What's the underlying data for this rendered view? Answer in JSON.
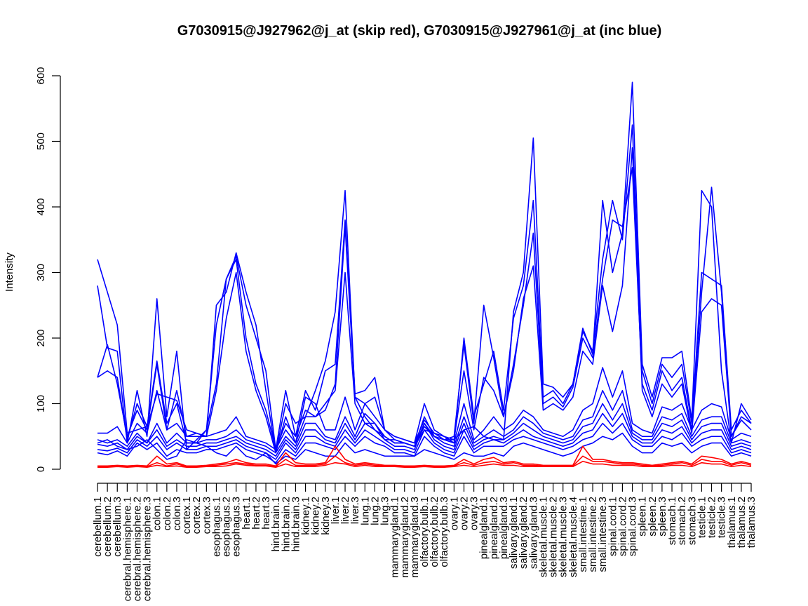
{
  "chart_data": {
    "type": "line",
    "title": "G7030915@J927962@j_at (skip red), G7030915@J927961@j_at (inc blue)",
    "xlabel": "",
    "ylabel": "Intensity",
    "ylim": [
      0,
      600
    ],
    "yticks": [
      0,
      100,
      200,
      300,
      400,
      500,
      600
    ],
    "grid": false,
    "categories": [
      "cerebellum.1",
      "cerebellum.2",
      "cerebellum.3",
      "cerebral.hemisphere.1",
      "cerebral.hemisphere.2",
      "cerebral.hemisphere.3",
      "colon.1",
      "colon.2",
      "colon.3",
      "cortex.1",
      "cortex.2",
      "cortex.3",
      "esophagus.1",
      "esophagus.2",
      "esophagus.3",
      "heart.1",
      "heart.2",
      "heart.3",
      "hind.brain.1",
      "hind.brain.2",
      "hind.brain.3",
      "kidney.1",
      "kidney.2",
      "kidney.3",
      "liver.1",
      "liver.2",
      "liver.3",
      "lung.1",
      "lung.2",
      "lung.3",
      "mammarygland.1",
      "mammarygland.2",
      "mammarygland.3",
      "olfactory.bulb.1",
      "olfactory.bulb.2",
      "olfactory.bulb.3",
      "ovary.1",
      "ovary.2",
      "ovary.3",
      "pinealgland.1",
      "pinealgland.2",
      "pinealgland.3",
      "salivary.gland.1",
      "salivary.gland.2",
      "salivary.gland.3",
      "skeletal.muscle.1",
      "skeletal.muscle.2",
      "skeletal.muscle.3",
      "skeletal.muscle.4",
      "small.intestine.1",
      "small.intestine.2",
      "small.intestine.3",
      "spinal.cord.1",
      "spinal.cord.2",
      "spinal.cord.3",
      "spleen.1",
      "spleen.2",
      "spleen.3",
      "stomach.1",
      "stomach.2",
      "stomach.3",
      "testicle.1",
      "testicle.2",
      "testicle.3",
      "thalamus.1",
      "thalamus.2",
      "thalamus.3"
    ],
    "series": [
      {
        "color": "#0000ff",
        "values": [
          320,
          270,
          220,
          55,
          60,
          65,
          115,
          110,
          105,
          60,
          55,
          50,
          250,
          270,
          330,
          270,
          220,
          120,
          25,
          100,
          70,
          80,
          120,
          165,
          240,
          425,
          110,
          100,
          80,
          60,
          45,
          40,
          35,
          60,
          55,
          50,
          45,
          60,
          65,
          50,
          45,
          45,
          240,
          300,
          505,
          130,
          125,
          110,
          130,
          215,
          175,
          410,
          300,
          360,
          590,
          160,
          110,
          170,
          170,
          180,
          75,
          425,
          400,
          150,
          40,
          100,
          75
        ],
        "series_color_name": "inc blue"
      },
      {
        "color": "#0000ff",
        "values": [
          280,
          185,
          180,
          40,
          120,
          50,
          260,
          80,
          180,
          30,
          45,
          60,
          130,
          290,
          325,
          250,
          200,
          150,
          30,
          120,
          50,
          120,
          90,
          150,
          160,
          380,
          115,
          120,
          140,
          60,
          50,
          45,
          40,
          75,
          55,
          45,
          40,
          200,
          80,
          130,
          180,
          90,
          230,
          280,
          410,
          110,
          120,
          100,
          130,
          210,
          180,
          320,
          410,
          350,
          525,
          150,
          100,
          160,
          140,
          160,
          70,
          300,
          290,
          280,
          60,
          90,
          70
        ]
      },
      {
        "color": "#0000ff",
        "values": [
          140,
          150,
          140,
          45,
          100,
          65,
          165,
          70,
          100,
          40,
          40,
          60,
          220,
          290,
          320,
          200,
          130,
          90,
          30,
          70,
          50,
          90,
          80,
          90,
          130,
          370,
          110,
          80,
          60,
          50,
          40,
          40,
          35,
          65,
          50,
          45,
          50,
          190,
          70,
          250,
          170,
          80,
          160,
          250,
          360,
          100,
          110,
          95,
          125,
          200,
          170,
          290,
          380,
          370,
          460,
          130,
          90,
          150,
          120,
          140,
          60,
          270,
          430,
          270,
          50,
          80,
          70
        ]
      },
      {
        "color": "#0000ff",
        "values": [
          140,
          190,
          130,
          50,
          90,
          60,
          160,
          60,
          120,
          50,
          50,
          50,
          120,
          230,
          300,
          180,
          120,
          80,
          25,
          80,
          40,
          80,
          80,
          100,
          120,
          300,
          100,
          70,
          70,
          45,
          45,
          40,
          35,
          70,
          50,
          45,
          45,
          150,
          60,
          140,
          120,
          80,
          150,
          260,
          310,
          90,
          100,
          90,
          110,
          180,
          160,
          280,
          210,
          280,
          490,
          120,
          80,
          130,
          110,
          130,
          55,
          240,
          260,
          250,
          50,
          75,
          60
        ]
      },
      {
        "color": "#0000ff",
        "values": [
          55,
          55,
          65,
          40,
          70,
          55,
          120,
          60,
          70,
          50,
          55,
          50,
          55,
          60,
          80,
          50,
          45,
          40,
          30,
          60,
          40,
          110,
          100,
          60,
          60,
          110,
          60,
          100,
          110,
          60,
          50,
          45,
          40,
          100,
          60,
          50,
          40,
          100,
          45,
          60,
          80,
          60,
          70,
          90,
          80,
          60,
          55,
          50,
          60,
          90,
          100,
          155,
          110,
          150,
          70,
          60,
          55,
          95,
          90,
          100,
          60,
          90,
          100,
          95,
          45,
          55,
          50
        ]
      },
      {
        "color": "#0000ff",
        "values": [
          45,
          40,
          45,
          35,
          55,
          40,
          70,
          40,
          55,
          40,
          40,
          45,
          45,
          50,
          60,
          45,
          40,
          35,
          25,
          50,
          35,
          70,
          70,
          50,
          45,
          80,
          50,
          85,
          70,
          50,
          40,
          40,
          35,
          80,
          50,
          40,
          35,
          80,
          40,
          50,
          60,
          50,
          60,
          80,
          70,
          55,
          50,
          45,
          50,
          75,
          80,
          120,
          90,
          120,
          60,
          50,
          50,
          80,
          75,
          85,
          50,
          75,
          80,
          80,
          40,
          45,
          40
        ]
      },
      {
        "color": "#0000ff",
        "values": [
          38,
          35,
          40,
          30,
          50,
          40,
          60,
          35,
          45,
          35,
          35,
          40,
          40,
          45,
          50,
          40,
          35,
          30,
          20,
          45,
          30,
          60,
          60,
          45,
          40,
          70,
          45,
          70,
          60,
          45,
          35,
          35,
          30,
          70,
          45,
          35,
          30,
          70,
          35,
          45,
          50,
          45,
          55,
          70,
          60,
          50,
          45,
          40,
          45,
          65,
          70,
          100,
          75,
          100,
          55,
          45,
          45,
          70,
          65,
          75,
          45,
          65,
          70,
          70,
          35,
          40,
          35
        ]
      },
      {
        "color": "#0000ff",
        "values": [
          30,
          28,
          32,
          25,
          45,
          35,
          50,
          30,
          40,
          30,
          30,
          35,
          35,
          40,
          45,
          35,
          30,
          25,
          15,
          40,
          25,
          50,
          50,
          40,
          35,
          60,
          40,
          60,
          50,
          40,
          30,
          30,
          25,
          60,
          40,
          30,
          25,
          60,
          30,
          40,
          45,
          40,
          50,
          60,
          50,
          45,
          40,
          35,
          40,
          55,
          60,
          85,
          65,
          85,
          50,
          40,
          40,
          60,
          55,
          65,
          40,
          55,
          60,
          60,
          30,
          35,
          30
        ]
      },
      {
        "color": "#0000ff",
        "values": [
          25,
          22,
          28,
          20,
          40,
          30,
          40,
          20,
          30,
          25,
          25,
          30,
          30,
          35,
          40,
          30,
          25,
          20,
          10,
          30,
          20,
          40,
          40,
          35,
          30,
          50,
          35,
          50,
          40,
          35,
          25,
          25,
          20,
          50,
          35,
          25,
          20,
          50,
          25,
          35,
          35,
          35,
          45,
          50,
          45,
          40,
          35,
          30,
          35,
          45,
          50,
          70,
          55,
          70,
          45,
          35,
          35,
          50,
          45,
          55,
          35,
          45,
          50,
          50,
          25,
          30,
          25
        ]
      },
      {
        "color": "#0000ff",
        "values": [
          40,
          45,
          35,
          30,
          35,
          45,
          30,
          15,
          20,
          45,
          40,
          35,
          25,
          20,
          35,
          20,
          15,
          25,
          8,
          20,
          15,
          30,
          25,
          20,
          20,
          40,
          25,
          30,
          25,
          20,
          20,
          20,
          20,
          30,
          25,
          20,
          15,
          25,
          20,
          20,
          25,
          20,
          35,
          40,
          35,
          30,
          25,
          20,
          25,
          35,
          40,
          50,
          45,
          55,
          35,
          25,
          25,
          40,
          35,
          40,
          25,
          35,
          40,
          40,
          20,
          25,
          20
        ]
      },
      {
        "color": "#ff0000",
        "values": [
          5,
          5,
          6,
          5,
          6,
          5,
          20,
          8,
          10,
          5,
          5,
          6,
          8,
          10,
          15,
          10,
          8,
          8,
          5,
          25,
          10,
          8,
          8,
          10,
          35,
          15,
          8,
          10,
          8,
          6,
          6,
          5,
          5,
          6,
          5,
          5,
          6,
          15,
          8,
          15,
          18,
          10,
          12,
          8,
          8,
          6,
          6,
          6,
          6,
          35,
          15,
          15,
          12,
          10,
          10,
          8,
          6,
          8,
          10,
          12,
          8,
          20,
          18,
          15,
          8,
          12,
          8
        ]
      },
      {
        "color": "#ff0000",
        "values": [
          4,
          4,
          5,
          4,
          5,
          4,
          10,
          5,
          8,
          4,
          4,
          5,
          6,
          8,
          10,
          8,
          6,
          6,
          4,
          15,
          6,
          6,
          6,
          8,
          20,
          10,
          6,
          8,
          6,
          5,
          5,
          4,
          4,
          5,
          4,
          4,
          5,
          10,
          6,
          10,
          12,
          8,
          10,
          6,
          6,
          5,
          5,
          5,
          5,
          20,
          12,
          12,
          10,
          8,
          8,
          6,
          5,
          6,
          8,
          10,
          6,
          15,
          12,
          12,
          6,
          10,
          6
        ]
      },
      {
        "color": "#ff0000",
        "values": [
          3,
          3,
          4,
          3,
          4,
          3,
          6,
          4,
          5,
          3,
          3,
          4,
          4,
          5,
          8,
          6,
          5,
          5,
          3,
          8,
          4,
          4,
          4,
          6,
          10,
          8,
          4,
          6,
          4,
          4,
          4,
          3,
          3,
          4,
          3,
          3,
          4,
          6,
          4,
          6,
          8,
          6,
          6,
          4,
          4,
          4,
          4,
          4,
          4,
          12,
          8,
          8,
          6,
          6,
          6,
          4,
          4,
          4,
          6,
          6,
          4,
          10,
          8,
          8,
          4,
          6,
          4
        ]
      }
    ]
  }
}
